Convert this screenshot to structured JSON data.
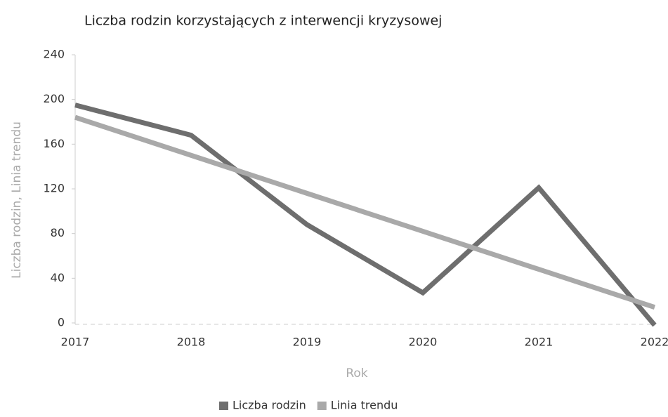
{
  "chart_data": {
    "type": "line",
    "title": "Liczba rodzin korzystających z interwencji kryzysowej",
    "x_label": "Rok",
    "y_label": "Liczba rodzin, Linia trendu",
    "categories": [
      "2017",
      "2018",
      "2019",
      "2020",
      "2021",
      "2022"
    ],
    "series": [
      {
        "name": "Liczba rodzin",
        "color": "#6e6e6e",
        "values": [
          195,
          168,
          88,
          27,
          121,
          -2
        ]
      },
      {
        "name": "Linia trendu",
        "color": "#a9a9a9",
        "values": [
          184,
          150,
          116,
          82,
          48,
          14
        ]
      }
    ],
    "ylim": [
      0,
      240
    ],
    "yticks": [
      0,
      40,
      80,
      120,
      160,
      200,
      240
    ],
    "grid": false,
    "legend": "bottom"
  }
}
